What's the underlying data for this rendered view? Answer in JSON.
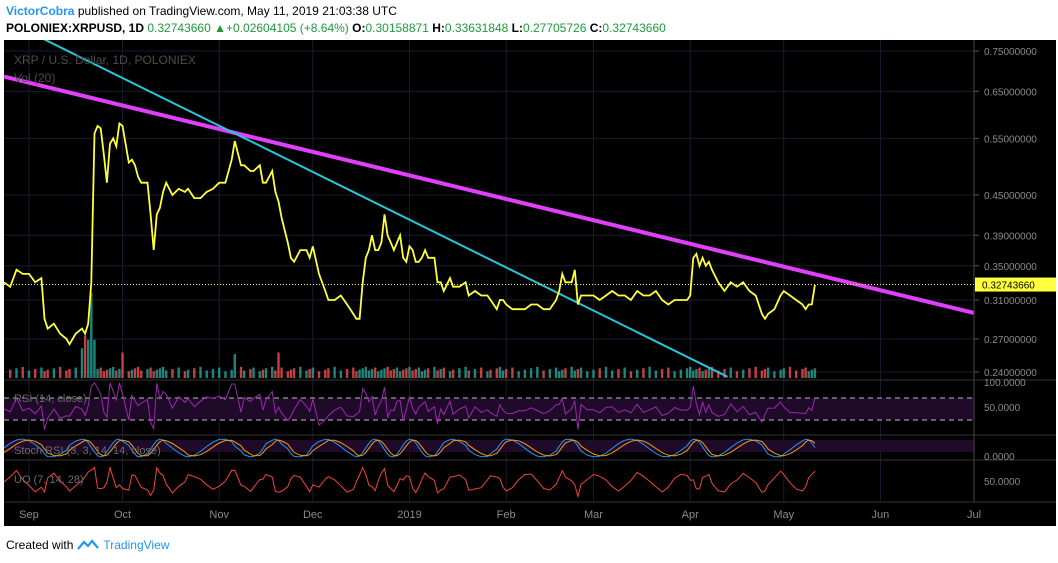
{
  "header": {
    "author": "VictorCobra",
    "published_text": "published on TradingView.com, May 11, 2019 21:03:38 UTC",
    "symbol": "POLONIEX:XRPUSD, 1D",
    "last": "0.32743660",
    "change": "+0.02604105 (+8.64%)",
    "change_arrow": "▲",
    "o_label": "O:",
    "o_value": "0.30158871",
    "h_label": "H:",
    "h_value": "0.33631848",
    "l_label": "L:",
    "l_value": "0.27705726",
    "c_label": "C:",
    "c_value": "0.32743660"
  },
  "chart_data": {
    "type": "line",
    "title": "XRP / U.S. Dollar, 1D, POLONIEX",
    "volume_label": "Vol (20)",
    "y_scale": "log",
    "ylim": [
      0.235,
      0.78
    ],
    "y_ticks": [
      "0.75000000",
      "0.65000000",
      "0.55000000",
      "0.45000000",
      "0.39000000",
      "0.35000000",
      "0.31000000",
      "0.27000000",
      "0.24000000"
    ],
    "y_tick_values": [
      0.75,
      0.65,
      0.55,
      0.45,
      0.39,
      0.35,
      0.31,
      0.27,
      0.24
    ],
    "last_price_label": "0.32743660",
    "last_price": 0.3274366,
    "x_ticks": [
      "Sep",
      "Oct",
      "Nov",
      "Dec",
      "2019",
      "Feb",
      "Mar",
      "Apr",
      "May",
      "Jun",
      "Jul"
    ],
    "x_tick_dates": [
      "2018-09-01",
      "2018-10-01",
      "2018-11-01",
      "2018-12-01",
      "2019-01-01",
      "2019-02-01",
      "2019-03-01",
      "2019-04-01",
      "2019-05-01",
      "2019-06-01",
      "2019-07-01"
    ],
    "x_range": [
      "2018-08-24",
      "2019-07-01"
    ],
    "price": {
      "name": "XRPUSD",
      "color": "#ffff3b",
      "points": [
        [
          "2018-08-24",
          0.33
        ],
        [
          "2018-08-26",
          0.325
        ],
        [
          "2018-08-28",
          0.345
        ],
        [
          "2018-08-30",
          0.34
        ],
        [
          "2018-09-01",
          0.34
        ],
        [
          "2018-09-03",
          0.33
        ],
        [
          "2018-09-05",
          0.335
        ],
        [
          "2018-09-06",
          0.29
        ],
        [
          "2018-09-07",
          0.28
        ],
        [
          "2018-09-09",
          0.285
        ],
        [
          "2018-09-11",
          0.275
        ],
        [
          "2018-09-13",
          0.27
        ],
        [
          "2018-09-14",
          0.265
        ],
        [
          "2018-09-16",
          0.275
        ],
        [
          "2018-09-18",
          0.28
        ],
        [
          "2018-09-19",
          0.275
        ],
        [
          "2018-09-20",
          0.285
        ],
        [
          "2018-09-21",
          0.33
        ],
        [
          "2018-09-22",
          0.56
        ],
        [
          "2018-09-23",
          0.575
        ],
        [
          "2018-09-24",
          0.57
        ],
        [
          "2018-09-25",
          0.52
        ],
        [
          "2018-09-26",
          0.47
        ],
        [
          "2018-09-27",
          0.54
        ],
        [
          "2018-09-28",
          0.55
        ],
        [
          "2018-09-29",
          0.535
        ],
        [
          "2018-09-30",
          0.58
        ],
        [
          "2018-10-01",
          0.575
        ],
        [
          "2018-10-03",
          0.505
        ],
        [
          "2018-10-04",
          0.51
        ],
        [
          "2018-10-05",
          0.5
        ],
        [
          "2018-10-06",
          0.48
        ],
        [
          "2018-10-07",
          0.47
        ],
        [
          "2018-10-09",
          0.47
        ],
        [
          "2018-10-10",
          0.42
        ],
        [
          "2018-10-11",
          0.37
        ],
        [
          "2018-10-12",
          0.42
        ],
        [
          "2018-10-13",
          0.43
        ],
        [
          "2018-10-14",
          0.455
        ],
        [
          "2018-10-15",
          0.47
        ],
        [
          "2018-10-17",
          0.45
        ],
        [
          "2018-10-19",
          0.46
        ],
        [
          "2018-10-21",
          0.455
        ],
        [
          "2018-10-22",
          0.46
        ],
        [
          "2018-10-24",
          0.445
        ],
        [
          "2018-10-26",
          0.445
        ],
        [
          "2018-10-28",
          0.455
        ],
        [
          "2018-10-30",
          0.46
        ],
        [
          "2018-11-01",
          0.47
        ],
        [
          "2018-11-03",
          0.47
        ],
        [
          "2018-11-05",
          0.51
        ],
        [
          "2018-11-06",
          0.545
        ],
        [
          "2018-11-08",
          0.5
        ],
        [
          "2018-11-09",
          0.5
        ],
        [
          "2018-11-11",
          0.49
        ],
        [
          "2018-11-12",
          0.49
        ],
        [
          "2018-11-14",
          0.5
        ],
        [
          "2018-11-15",
          0.47
        ],
        [
          "2018-11-16",
          0.47
        ],
        [
          "2018-11-18",
          0.49
        ],
        [
          "2018-11-19",
          0.455
        ],
        [
          "2018-11-20",
          0.44
        ],
        [
          "2018-11-21",
          0.415
        ],
        [
          "2018-11-23",
          0.38
        ],
        [
          "2018-11-24",
          0.36
        ],
        [
          "2018-11-25",
          0.355
        ],
        [
          "2018-11-27",
          0.37
        ],
        [
          "2018-11-29",
          0.37
        ],
        [
          "2018-11-30",
          0.36
        ],
        [
          "2018-12-01",
          0.375
        ],
        [
          "2018-12-03",
          0.34
        ],
        [
          "2018-12-05",
          0.32
        ],
        [
          "2018-12-06",
          0.31
        ],
        [
          "2018-12-08",
          0.31
        ],
        [
          "2018-12-10",
          0.315
        ],
        [
          "2018-12-12",
          0.305
        ],
        [
          "2018-12-14",
          0.295
        ],
        [
          "2018-12-15",
          0.29
        ],
        [
          "2018-12-16",
          0.29
        ],
        [
          "2018-12-17",
          0.33
        ],
        [
          "2018-12-18",
          0.36
        ],
        [
          "2018-12-19",
          0.37
        ],
        [
          "2018-12-20",
          0.39
        ],
        [
          "2018-12-21",
          0.37
        ],
        [
          "2018-12-22",
          0.37
        ],
        [
          "2018-12-23",
          0.38
        ],
        [
          "2018-12-24",
          0.42
        ],
        [
          "2018-12-25",
          0.39
        ],
        [
          "2018-12-26",
          0.38
        ],
        [
          "2018-12-27",
          0.37
        ],
        [
          "2018-12-28",
          0.38
        ],
        [
          "2018-12-29",
          0.39
        ],
        [
          "2018-12-30",
          0.36
        ],
        [
          "2018-12-31",
          0.355
        ],
        [
          "2019-01-01",
          0.375
        ],
        [
          "2019-01-02",
          0.37
        ],
        [
          "2019-01-03",
          0.355
        ],
        [
          "2019-01-04",
          0.355
        ],
        [
          "2019-01-05",
          0.36
        ],
        [
          "2019-01-06",
          0.37
        ],
        [
          "2019-01-07",
          0.36
        ],
        [
          "2019-01-09",
          0.36
        ],
        [
          "2019-01-10",
          0.33
        ],
        [
          "2019-01-11",
          0.33
        ],
        [
          "2019-01-12",
          0.32
        ],
        [
          "2019-01-14",
          0.335
        ],
        [
          "2019-01-15",
          0.325
        ],
        [
          "2019-01-17",
          0.325
        ],
        [
          "2019-01-19",
          0.33
        ],
        [
          "2019-01-20",
          0.315
        ],
        [
          "2019-01-22",
          0.32
        ],
        [
          "2019-01-24",
          0.315
        ],
        [
          "2019-01-26",
          0.315
        ],
        [
          "2019-01-27",
          0.31
        ],
        [
          "2019-01-29",
          0.3
        ],
        [
          "2019-01-30",
          0.31
        ],
        [
          "2019-01-31",
          0.31
        ],
        [
          "2019-02-01",
          0.305
        ],
        [
          "2019-02-03",
          0.3
        ],
        [
          "2019-02-05",
          0.3
        ],
        [
          "2019-02-07",
          0.3
        ],
        [
          "2019-02-09",
          0.305
        ],
        [
          "2019-02-11",
          0.305
        ],
        [
          "2019-02-13",
          0.3
        ],
        [
          "2019-02-15",
          0.3
        ],
        [
          "2019-02-17",
          0.31
        ],
        [
          "2019-02-18",
          0.32
        ],
        [
          "2019-02-19",
          0.34
        ],
        [
          "2019-02-20",
          0.33
        ],
        [
          "2019-02-22",
          0.33
        ],
        [
          "2019-02-23",
          0.345
        ],
        [
          "2019-02-24",
          0.305
        ],
        [
          "2019-02-25",
          0.315
        ],
        [
          "2019-02-27",
          0.315
        ],
        [
          "2019-03-01",
          0.315
        ],
        [
          "2019-03-03",
          0.31
        ],
        [
          "2019-03-05",
          0.315
        ],
        [
          "2019-03-07",
          0.32
        ],
        [
          "2019-03-09",
          0.315
        ],
        [
          "2019-03-11",
          0.315
        ],
        [
          "2019-03-13",
          0.31
        ],
        [
          "2019-03-15",
          0.32
        ],
        [
          "2019-03-17",
          0.315
        ],
        [
          "2019-03-19",
          0.315
        ],
        [
          "2019-03-21",
          0.32
        ],
        [
          "2019-03-23",
          0.31
        ],
        [
          "2019-03-25",
          0.305
        ],
        [
          "2019-03-27",
          0.31
        ],
        [
          "2019-03-29",
          0.31
        ],
        [
          "2019-03-31",
          0.31
        ],
        [
          "2019-04-01",
          0.315
        ],
        [
          "2019-04-02",
          0.36
        ],
        [
          "2019-04-03",
          0.365
        ],
        [
          "2019-04-04",
          0.35
        ],
        [
          "2019-04-05",
          0.36
        ],
        [
          "2019-04-06",
          0.35
        ],
        [
          "2019-04-07",
          0.355
        ],
        [
          "2019-04-08",
          0.345
        ],
        [
          "2019-04-10",
          0.33
        ],
        [
          "2019-04-12",
          0.32
        ],
        [
          "2019-04-14",
          0.33
        ],
        [
          "2019-04-16",
          0.325
        ],
        [
          "2019-04-18",
          0.33
        ],
        [
          "2019-04-20",
          0.32
        ],
        [
          "2019-04-22",
          0.315
        ],
        [
          "2019-04-24",
          0.295
        ],
        [
          "2019-04-25",
          0.29
        ],
        [
          "2019-04-26",
          0.295
        ],
        [
          "2019-04-28",
          0.3
        ],
        [
          "2019-04-30",
          0.315
        ],
        [
          "2019-05-01",
          0.32
        ],
        [
          "2019-05-03",
          0.315
        ],
        [
          "2019-05-05",
          0.31
        ],
        [
          "2019-05-07",
          0.305
        ],
        [
          "2019-05-08",
          0.3
        ],
        [
          "2019-05-09",
          0.305
        ],
        [
          "2019-05-10",
          0.305
        ],
        [
          "2019-05-11",
          0.327
        ]
      ]
    },
    "trendlines": [
      {
        "color": "#e040fb",
        "from": [
          "2018-08-24",
          0.685
        ],
        "to": [
          "2019-07-01",
          0.296
        ]
      },
      {
        "color": "#26c6da",
        "from": [
          "2018-09-04",
          0.79
        ],
        "to": [
          "2019-04-13",
          0.236
        ]
      }
    ],
    "volume": {
      "up_color": "#26a69a",
      "down_color": "#ef5350",
      "spike_dates": [
        "2018-09-18",
        "2018-09-19",
        "2018-09-20",
        "2018-09-21",
        "2018-09-22",
        "2018-10-01",
        "2018-11-06",
        "2018-11-20"
      ],
      "spike_values": [
        0.35,
        0.5,
        0.45,
        1.0,
        0.45,
        0.3,
        0.28,
        0.3
      ]
    },
    "rsi": {
      "label": "RSI (14, close)",
      "scale_labels": [
        "100.0000",
        "50.0000"
      ],
      "scale_values": [
        100,
        50
      ],
      "bands": [
        70,
        30
      ],
      "color": "#9c27b0",
      "level_end": 55
    },
    "stoch_rsi": {
      "label": "Stoch RSI (3, 3, 14, 14, close)",
      "scale_labels": [
        "0.0000"
      ],
      "k_color": "#2196f3",
      "d_color": "#ff9800"
    },
    "uo": {
      "label": "UO (7, 14, 28)",
      "scale_labels": [
        "50.0000"
      ],
      "color": "#f44336"
    }
  },
  "footer": {
    "created_with": "Created with",
    "brand": "TradingView"
  }
}
